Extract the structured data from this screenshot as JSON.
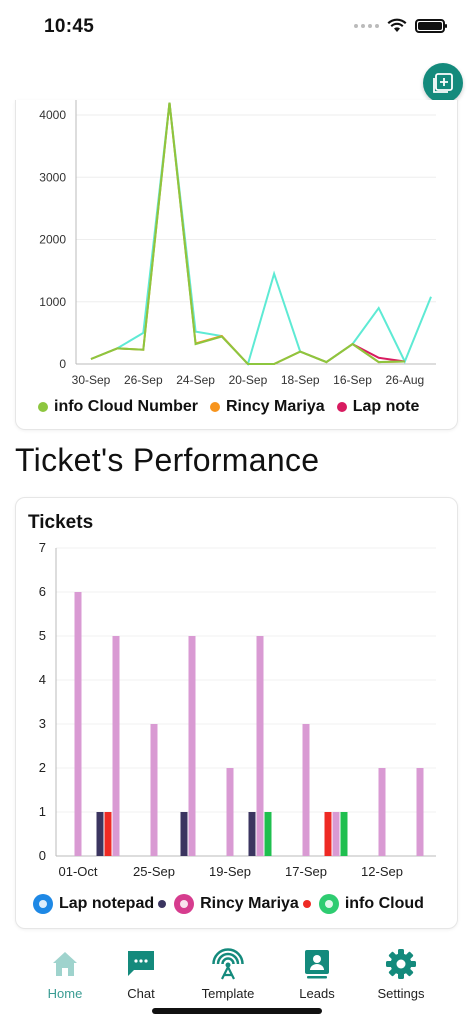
{
  "status_bar": {
    "time": "10:45"
  },
  "line_chart_card": {
    "chart_data": {
      "type": "line",
      "title": "",
      "categories": [
        "30-Sep",
        "",
        "26-Sep",
        "",
        "24-Sep",
        "",
        "20-Sep",
        "",
        "18-Sep",
        "",
        "16-Sep",
        "",
        "26-Aug",
        ""
      ],
      "x_tick_labels": [
        "30-Sep",
        "26-Sep",
        "24-Sep",
        "20-Sep",
        "18-Sep",
        "16-Sep",
        "26-Aug"
      ],
      "y_ticks": [
        0,
        1000,
        2000,
        3000,
        4000
      ],
      "ylim": [
        0,
        4000
      ],
      "series": [
        {
          "name": "info Cloud Number",
          "color": "#8dc63f",
          "values": [
            80,
            250,
            230,
            4200,
            320,
            440,
            0,
            0,
            200,
            30,
            320,
            30,
            40,
            null
          ]
        },
        {
          "name": "Rincy Mariya",
          "color": "#f7941d",
          "values": [
            80,
            250,
            230,
            4200,
            330,
            450,
            0,
            0,
            200,
            30,
            320,
            30,
            40,
            null
          ]
        },
        {
          "name": "Lap notepad",
          "color": "#d81b60",
          "values": [
            null,
            null,
            null,
            null,
            null,
            null,
            null,
            null,
            null,
            null,
            320,
            100,
            40,
            null
          ]
        },
        {
          "name": "",
          "color": "#5eead4",
          "values": [
            80,
            250,
            500,
            4200,
            520,
            450,
            0,
            1450,
            200,
            30,
            320,
            900,
            40,
            1080
          ]
        }
      ]
    },
    "legend": [
      {
        "label": "info Cloud Number",
        "color": "#8dc63f"
      },
      {
        "label": "Rincy Mariya",
        "color": "#f7941d"
      },
      {
        "label": "Lap note",
        "color": "#d81b60"
      }
    ]
  },
  "section_title": "Ticket's Performance",
  "bar_chart_card": {
    "title": "Tickets",
    "chart_data": {
      "type": "bar",
      "title": "Tickets",
      "x_tick_labels": [
        "01-Oct",
        "25-Sep",
        "19-Sep",
        "17-Sep",
        "12-Sep"
      ],
      "y_ticks": [
        0,
        1,
        2,
        3,
        4,
        5,
        6,
        7
      ],
      "ylim": [
        0,
        7
      ],
      "groups": [
        {
          "category": "01-Oct",
          "bars": [
            {
              "value": 6,
              "color": "#d99ad3"
            }
          ]
        },
        {
          "category": "",
          "bars": [
            {
              "value": 1,
              "color": "#3b3560"
            },
            {
              "value": 1,
              "color": "#ee2a24"
            },
            {
              "value": 5,
              "color": "#d99ad3"
            }
          ]
        },
        {
          "category": "25-Sep",
          "bars": [
            {
              "value": 3,
              "color": "#d99ad3"
            }
          ]
        },
        {
          "category": "",
          "bars": [
            {
              "value": 1,
              "color": "#3b3560"
            },
            {
              "value": 5,
              "color": "#d99ad3"
            }
          ]
        },
        {
          "category": "19-Sep",
          "bars": [
            {
              "value": 2,
              "color": "#d99ad3"
            }
          ]
        },
        {
          "category": "",
          "bars": [
            {
              "value": 1,
              "color": "#3b3560"
            },
            {
              "value": 5,
              "color": "#d99ad3"
            },
            {
              "value": 1,
              "color": "#1fbf4f"
            }
          ]
        },
        {
          "category": "17-Sep",
          "bars": [
            {
              "value": 3,
              "color": "#d99ad3"
            }
          ]
        },
        {
          "category": "",
          "bars": [
            {
              "value": 1,
              "color": "#ee2a24"
            },
            {
              "value": 1,
              "color": "#d99ad3"
            },
            {
              "value": 1,
              "color": "#1fbf4f"
            }
          ]
        },
        {
          "category": "12-Sep",
          "bars": [
            {
              "value": 2,
              "color": "#d99ad3"
            }
          ]
        },
        {
          "category": "",
          "bars": [
            {
              "value": 2,
              "color": "#d99ad3"
            }
          ]
        }
      ]
    },
    "legend": [
      {
        "label": "Lap notepad",
        "avatar_color": "#1e88e5",
        "dot_color": "#3b3560"
      },
      {
        "label": "Rincy Mariya",
        "avatar_color": "#d63c8e",
        "dot_color": "#ee2a24"
      },
      {
        "label": "info Cloud",
        "avatar_color": "#2ecc71",
        "dot_color": ""
      }
    ]
  },
  "bottom_nav": {
    "items": [
      {
        "label": "Home",
        "icon": "home-icon",
        "active": true
      },
      {
        "label": "Chat",
        "icon": "chat-icon",
        "active": false
      },
      {
        "label": "Template",
        "icon": "template-icon",
        "active": false
      },
      {
        "label": "Leads",
        "icon": "leads-icon",
        "active": false
      },
      {
        "label": "Settings",
        "icon": "settings-icon",
        "active": false
      }
    ],
    "active_color": "#3a9c93",
    "icon_color": "#148a7c"
  }
}
